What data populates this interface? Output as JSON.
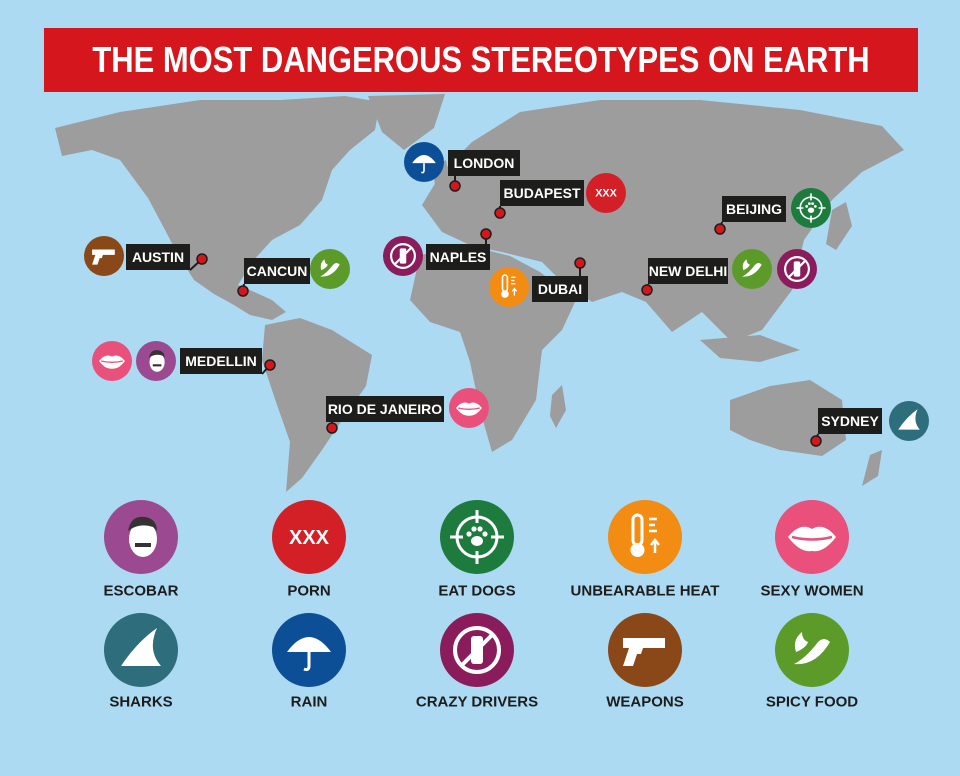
{
  "title": "THE MOST DANGEROUS STEREOTYPES ON EARTH",
  "cities": [
    {
      "label": "LONDON"
    },
    {
      "label": "BUDAPEST"
    },
    {
      "label": "BEIJING"
    },
    {
      "label": "AUSTIN"
    },
    {
      "label": "CANCUN"
    },
    {
      "label": "NAPLES"
    },
    {
      "label": "DUBAI"
    },
    {
      "label": "NEW DELHI"
    },
    {
      "label": "MEDELLIN"
    },
    {
      "label": "RIO DE JANEIRO"
    },
    {
      "label": "SYDNEY"
    }
  ],
  "legend": [
    {
      "label": "ESCOBAR"
    },
    {
      "label": "PORN",
      "icon_text": "XXX"
    },
    {
      "label": "EAT DOGS"
    },
    {
      "label": "UNBEARABLE HEAT"
    },
    {
      "label": "SEXY WOMEN"
    },
    {
      "label": "SHARKS"
    },
    {
      "label": "RAIN"
    },
    {
      "label": "CRAZY DRIVERS"
    },
    {
      "label": "WEAPONS"
    },
    {
      "label": "SPICY FOOD"
    }
  ]
}
